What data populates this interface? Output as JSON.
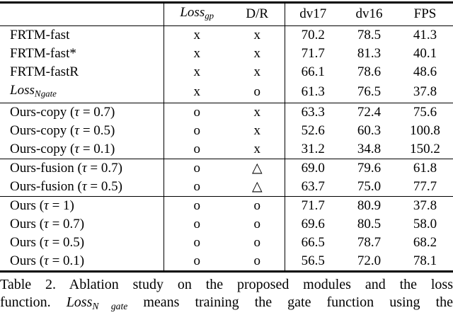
{
  "table": {
    "header": [
      {
        "parts": []
      },
      {
        "parts": [
          {
            "t": "Loss",
            "s": "i"
          },
          {
            "t": "gp",
            "s": "sub"
          }
        ]
      },
      {
        "parts": [
          {
            "t": "D/R",
            "s": "n"
          }
        ]
      },
      {
        "parts": [
          {
            "t": "dv17",
            "s": "n"
          }
        ]
      },
      {
        "parts": [
          {
            "t": "dv16",
            "s": "n"
          }
        ]
      },
      {
        "parts": [
          {
            "t": "FPS",
            "s": "n"
          }
        ]
      }
    ],
    "groups": [
      {
        "rows": [
          {
            "label": [
              {
                "t": "FRTM-fast",
                "s": "n"
              }
            ],
            "cells": [
              "x",
              "x",
              "70.2",
              "78.5",
              "41.3"
            ]
          },
          {
            "label": [
              {
                "t": "FRTM-fast*",
                "s": "n"
              }
            ],
            "cells": [
              "x",
              "x",
              "71.7",
              "81.3",
              "40.1"
            ]
          },
          {
            "label": [
              {
                "t": "FRTM-fastR",
                "s": "n"
              }
            ],
            "cells": [
              "x",
              "x",
              "66.1",
              "78.6",
              "48.6"
            ]
          },
          {
            "label": [
              {
                "t": "Loss",
                "s": "i"
              },
              {
                "t": "N gate",
                "s": "sub"
              }
            ],
            "cells": [
              "x",
              "o",
              "61.3",
              "76.5",
              "37.8"
            ]
          }
        ]
      },
      {
        "rows": [
          {
            "label": [
              {
                "t": "Ours-copy (",
                "s": "n"
              },
              {
                "t": "τ",
                "s": "i"
              },
              {
                "t": " = 0.7)",
                "s": "n"
              }
            ],
            "cells": [
              "o",
              "x",
              "63.3",
              "72.4",
              "75.6"
            ]
          },
          {
            "label": [
              {
                "t": "Ours-copy (",
                "s": "n"
              },
              {
                "t": "τ",
                "s": "i"
              },
              {
                "t": " = 0.5)",
                "s": "n"
              }
            ],
            "cells": [
              "o",
              "x",
              "52.6",
              "60.3",
              "100.8"
            ]
          },
          {
            "label": [
              {
                "t": "Ours-copy (",
                "s": "n"
              },
              {
                "t": "τ",
                "s": "i"
              },
              {
                "t": " = 0.1)",
                "s": "n"
              }
            ],
            "cells": [
              "o",
              "x",
              "31.2",
              "34.8",
              "150.2"
            ]
          }
        ]
      },
      {
        "rows": [
          {
            "label": [
              {
                "t": "Ours-fusion (",
                "s": "n"
              },
              {
                "t": "τ",
                "s": "i"
              },
              {
                "t": " = 0.7)",
                "s": "n"
              }
            ],
            "cells": [
              "o",
              "△",
              "69.0",
              "79.6",
              "61.8"
            ]
          },
          {
            "label": [
              {
                "t": "Ours-fusion (",
                "s": "n"
              },
              {
                "t": "τ",
                "s": "i"
              },
              {
                "t": " = 0.5)",
                "s": "n"
              }
            ],
            "cells": [
              "o",
              "△",
              "63.7",
              "75.0",
              "77.7"
            ]
          }
        ]
      },
      {
        "rows": [
          {
            "label": [
              {
                "t": "Ours (",
                "s": "n"
              },
              {
                "t": "τ",
                "s": "i"
              },
              {
                "t": " = 1)",
                "s": "n"
              }
            ],
            "cells": [
              "o",
              "o",
              "71.7",
              "80.9",
              "37.8"
            ]
          },
          {
            "label": [
              {
                "t": "Ours (",
                "s": "n"
              },
              {
                "t": "τ",
                "s": "i"
              },
              {
                "t": " = 0.7)",
                "s": "n"
              }
            ],
            "cells": [
              "o",
              "o",
              "69.6",
              "80.5",
              "58.0"
            ]
          },
          {
            "label": [
              {
                "t": "Ours (",
                "s": "n"
              },
              {
                "t": "τ",
                "s": "i"
              },
              {
                "t": " = 0.5)",
                "s": "n"
              }
            ],
            "cells": [
              "o",
              "o",
              "66.5",
              "78.7",
              "68.2"
            ]
          },
          {
            "label": [
              {
                "t": "Ours (",
                "s": "n"
              },
              {
                "t": "τ",
                "s": "i"
              },
              {
                "t": " = 0.1)",
                "s": "n"
              }
            ],
            "cells": [
              "o",
              "o",
              "56.5",
              "72.0",
              "78.1"
            ]
          }
        ]
      }
    ],
    "symbols": {
      "yes": "o",
      "no": "x",
      "partial": "△"
    }
  },
  "caption": {
    "label": "Table 2.",
    "lines": [
      {
        "parts": [
          {
            "t": "Table 2. Ablation study on the proposed modules and the loss",
            "s": "n"
          }
        ]
      },
      {
        "parts": [
          {
            "t": "function. ",
            "s": "n"
          },
          {
            "t": "Loss",
            "s": "i"
          },
          {
            "t": "N gate",
            "s": "sub"
          },
          {
            "t": " means training the gate function using the",
            "s": "n"
          }
        ]
      }
    ]
  },
  "colors": {
    "text": "#000000",
    "background": "#ffffff",
    "rule": "#000000"
  }
}
